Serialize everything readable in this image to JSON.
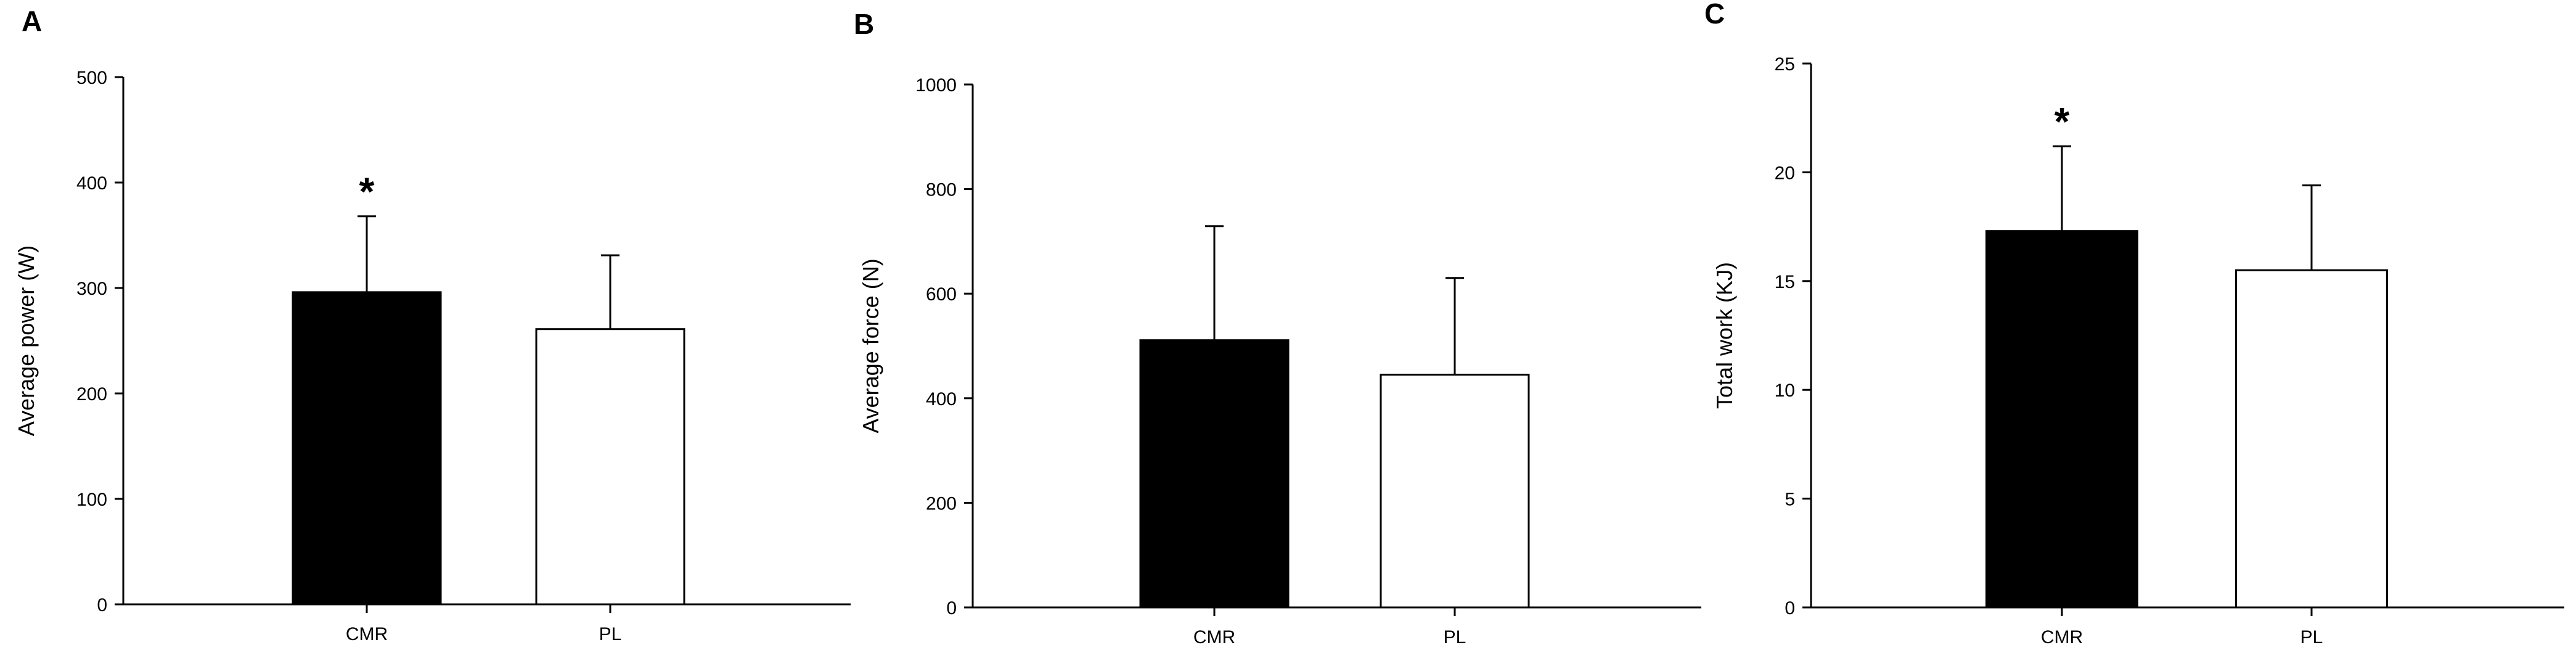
{
  "chart_data": [
    {
      "type": "bar",
      "panel": "A",
      "categories": [
        "CMR",
        "PL"
      ],
      "values": [
        296,
        261
      ],
      "errors": [
        72,
        70
      ],
      "annotations": [
        "*",
        ""
      ],
      "bar_colors": [
        "#000000",
        "#ffffff"
      ],
      "ylabel": "Average power  (W)",
      "xlabel": "",
      "ylim": [
        0,
        500
      ],
      "yticks": [
        0,
        100,
        200,
        300,
        400,
        500
      ],
      "grid": false
    },
    {
      "type": "bar",
      "panel": "B",
      "categories": [
        "CMR",
        "PL"
      ],
      "values": [
        511,
        445
      ],
      "errors": [
        218,
        185
      ],
      "annotations": [
        "",
        ""
      ],
      "bar_colors": [
        "#000000",
        "#ffffff"
      ],
      "ylabel": "Average force (N)",
      "xlabel": "",
      "ylim": [
        0,
        1000
      ],
      "yticks": [
        0,
        200,
        400,
        600,
        800,
        1000
      ],
      "grid": false
    },
    {
      "type": "bar",
      "panel": "C",
      "categories": [
        "CMR",
        "PL"
      ],
      "values": [
        17.3,
        15.5
      ],
      "errors": [
        3.9,
        3.9
      ],
      "annotations": [
        "*",
        ""
      ],
      "bar_colors": [
        "#000000",
        "#ffffff"
      ],
      "ylabel": "Total work (KJ)",
      "xlabel": "",
      "ylim": [
        0,
        25
      ],
      "yticks": [
        0,
        5,
        10,
        15,
        20,
        25
      ],
      "grid": false
    }
  ]
}
